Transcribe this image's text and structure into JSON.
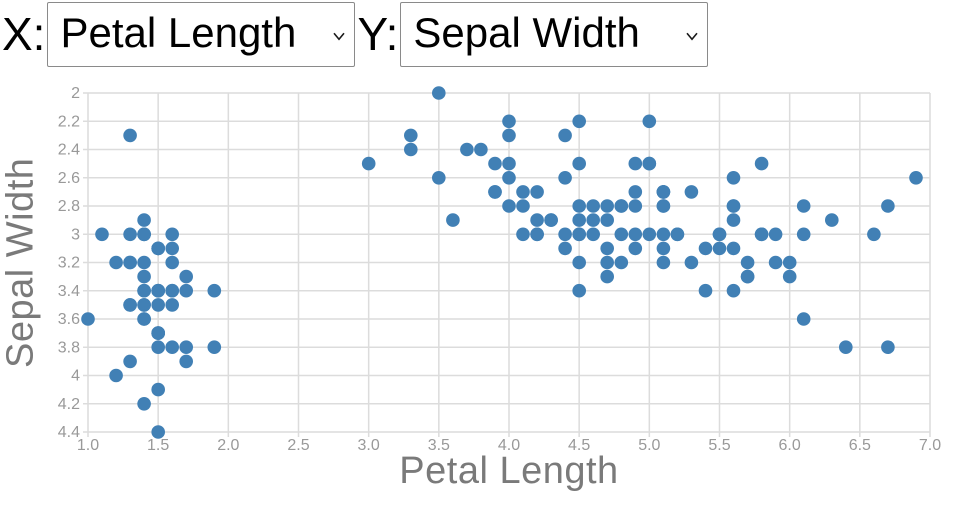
{
  "controls": {
    "x_label": "X:",
    "y_label": "Y:",
    "x_select": {
      "selected": "Petal Length"
    },
    "y_select": {
      "selected": "Sepal Width"
    }
  },
  "chart_data": {
    "type": "scatter",
    "title": "",
    "xlabel": "Petal Length",
    "ylabel": "Sepal Width",
    "xlim": [
      1.0,
      7.0
    ],
    "ylim": [
      2.0,
      4.4
    ],
    "y_axis_direction": "inverted",
    "grid": true,
    "legend": "none",
    "x_tick_labels": [
      "1.0",
      "1.5",
      "2.0",
      "2.5",
      "3.0",
      "3.5",
      "4.0",
      "4.5",
      "5.0",
      "5.5",
      "6.0",
      "6.5",
      "7.0"
    ],
    "y_tick_labels": [
      "2",
      "2.2",
      "2.4",
      "2.6",
      "2.8",
      "3",
      "3.2",
      "3.4",
      "3.6",
      "3.8",
      "4",
      "4.2",
      "4.4"
    ],
    "point_color": "#4180b5",
    "grid_color": "#dcdcdc",
    "tick_label_color": "#999999",
    "axis_title_color": "#7a7a7a",
    "points": [
      [
        1.4,
        3.5
      ],
      [
        1.4,
        3.0
      ],
      [
        1.3,
        3.2
      ],
      [
        1.5,
        3.1
      ],
      [
        1.4,
        3.6
      ],
      [
        1.7,
        3.9
      ],
      [
        1.4,
        3.4
      ],
      [
        1.5,
        3.4
      ],
      [
        1.4,
        2.9
      ],
      [
        1.5,
        3.1
      ],
      [
        1.5,
        3.7
      ],
      [
        1.6,
        3.4
      ],
      [
        1.4,
        3.0
      ],
      [
        1.1,
        3.0
      ],
      [
        1.2,
        4.0
      ],
      [
        1.5,
        4.4
      ],
      [
        1.3,
        3.9
      ],
      [
        1.4,
        3.5
      ],
      [
        1.7,
        3.8
      ],
      [
        1.5,
        3.8
      ],
      [
        1.7,
        3.4
      ],
      [
        1.5,
        3.7
      ],
      [
        1.0,
        3.6
      ],
      [
        1.7,
        3.3
      ],
      [
        1.9,
        3.4
      ],
      [
        1.6,
        3.0
      ],
      [
        1.6,
        3.4
      ],
      [
        1.5,
        3.5
      ],
      [
        1.4,
        3.4
      ],
      [
        1.6,
        3.2
      ],
      [
        1.6,
        3.1
      ],
      [
        1.5,
        3.4
      ],
      [
        1.5,
        4.1
      ],
      [
        1.4,
        4.2
      ],
      [
        1.5,
        3.1
      ],
      [
        1.2,
        3.2
      ],
      [
        1.3,
        3.5
      ],
      [
        1.4,
        3.6
      ],
      [
        1.3,
        3.0
      ],
      [
        1.5,
        3.4
      ],
      [
        1.3,
        3.5
      ],
      [
        1.3,
        2.3
      ],
      [
        1.3,
        3.2
      ],
      [
        1.6,
        3.5
      ],
      [
        1.9,
        3.8
      ],
      [
        1.4,
        3.0
      ],
      [
        1.6,
        3.8
      ],
      [
        1.4,
        3.2
      ],
      [
        1.5,
        3.7
      ],
      [
        1.4,
        3.3
      ],
      [
        4.7,
        3.2
      ],
      [
        4.5,
        3.2
      ],
      [
        4.9,
        3.1
      ],
      [
        4.0,
        2.3
      ],
      [
        4.6,
        2.8
      ],
      [
        4.5,
        2.8
      ],
      [
        4.7,
        3.3
      ],
      [
        3.3,
        2.4
      ],
      [
        4.6,
        2.9
      ],
      [
        3.9,
        2.7
      ],
      [
        3.5,
        2.0
      ],
      [
        4.2,
        3.0
      ],
      [
        4.0,
        2.2
      ],
      [
        4.7,
        2.9
      ],
      [
        3.6,
        2.9
      ],
      [
        4.4,
        3.1
      ],
      [
        4.5,
        3.0
      ],
      [
        4.1,
        2.7
      ],
      [
        4.5,
        2.2
      ],
      [
        3.9,
        2.5
      ],
      [
        4.8,
        3.2
      ],
      [
        4.0,
        2.8
      ],
      [
        4.9,
        2.5
      ],
      [
        4.7,
        2.8
      ],
      [
        4.3,
        2.9
      ],
      [
        4.4,
        3.0
      ],
      [
        4.8,
        2.8
      ],
      [
        5.0,
        3.0
      ],
      [
        4.5,
        2.9
      ],
      [
        3.5,
        2.6
      ],
      [
        3.8,
        2.4
      ],
      [
        3.7,
        2.4
      ],
      [
        3.9,
        2.7
      ],
      [
        5.1,
        2.7
      ],
      [
        4.5,
        3.0
      ],
      [
        4.5,
        3.4
      ],
      [
        4.7,
        3.1
      ],
      [
        4.4,
        2.3
      ],
      [
        4.1,
        3.0
      ],
      [
        4.0,
        2.5
      ],
      [
        4.4,
        2.6
      ],
      [
        4.6,
        3.0
      ],
      [
        4.0,
        2.6
      ],
      [
        3.3,
        2.3
      ],
      [
        4.2,
        2.7
      ],
      [
        4.2,
        3.0
      ],
      [
        4.2,
        2.9
      ],
      [
        4.3,
        2.9
      ],
      [
        3.0,
        2.5
      ],
      [
        4.1,
        2.8
      ],
      [
        6.0,
        3.3
      ],
      [
        5.1,
        2.7
      ],
      [
        5.9,
        3.0
      ],
      [
        5.6,
        2.9
      ],
      [
        5.8,
        3.0
      ],
      [
        6.6,
        3.0
      ],
      [
        4.5,
        2.5
      ],
      [
        6.3,
        2.9
      ],
      [
        5.8,
        2.5
      ],
      [
        6.1,
        3.6
      ],
      [
        5.1,
        3.2
      ],
      [
        5.3,
        2.7
      ],
      [
        5.5,
        3.0
      ],
      [
        5.0,
        2.5
      ],
      [
        5.1,
        2.8
      ],
      [
        5.3,
        3.2
      ],
      [
        5.5,
        3.0
      ],
      [
        6.7,
        3.8
      ],
      [
        6.9,
        2.6
      ],
      [
        5.0,
        2.2
      ],
      [
        5.7,
        3.2
      ],
      [
        4.9,
        2.8
      ],
      [
        6.7,
        2.8
      ],
      [
        4.9,
        2.7
      ],
      [
        5.7,
        3.3
      ],
      [
        6.0,
        3.2
      ],
      [
        4.8,
        2.8
      ],
      [
        4.9,
        3.0
      ],
      [
        5.6,
        2.8
      ],
      [
        5.8,
        3.0
      ],
      [
        6.1,
        2.8
      ],
      [
        6.4,
        3.8
      ],
      [
        5.6,
        2.8
      ],
      [
        5.1,
        2.8
      ],
      [
        5.6,
        2.6
      ],
      [
        6.1,
        3.0
      ],
      [
        5.6,
        3.4
      ],
      [
        5.5,
        3.1
      ],
      [
        4.8,
        3.0
      ],
      [
        5.4,
        3.1
      ],
      [
        5.6,
        3.1
      ],
      [
        5.1,
        3.1
      ],
      [
        5.1,
        2.7
      ],
      [
        5.9,
        3.2
      ],
      [
        5.7,
        3.3
      ],
      [
        5.2,
        3.0
      ],
      [
        5.0,
        2.5
      ],
      [
        5.2,
        3.0
      ],
      [
        5.4,
        3.4
      ],
      [
        5.1,
        3.0
      ]
    ]
  }
}
